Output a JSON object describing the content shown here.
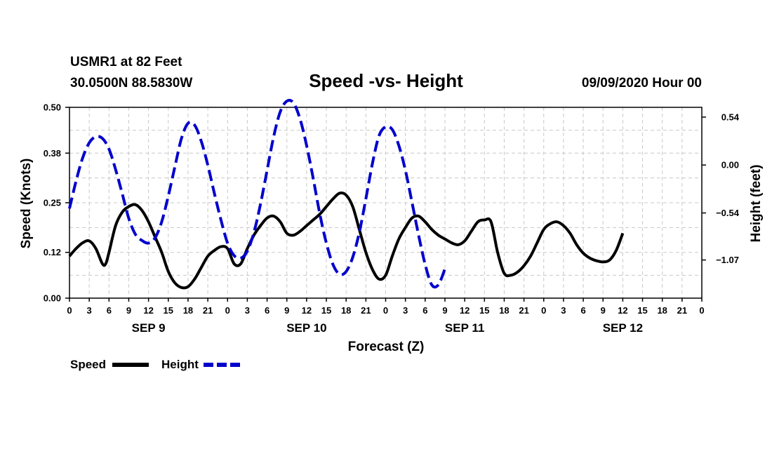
{
  "header": {
    "station": "USMR1 at 82 Feet",
    "coords": "30.0500N 88.5830W",
    "title": "Speed -vs- Height",
    "datetime": "09/09/2020 Hour 00"
  },
  "chart_data": {
    "type": "line",
    "title": "Speed -vs- Height",
    "xlabel": "Forecast (Z)",
    "ylabel_left": "Speed (Knots)",
    "ylabel_right": "Height (feet)",
    "x_range_hours": [
      0,
      96
    ],
    "ylim_left": [
      0.0,
      0.5
    ],
    "ylim_right": [
      -1.5,
      0.65
    ],
    "left_ticks": [
      "0.00",
      "0.12",
      "0.25",
      "0.38",
      "0.50"
    ],
    "right_ticks": [
      {
        "value": 0.54,
        "label": "0.54"
      },
      {
        "value": 0.0,
        "label": "0.00"
      },
      {
        "value": -0.54,
        "label": "−0.54"
      },
      {
        "value": -1.07,
        "label": "−1.07"
      }
    ],
    "x_tick_labels": [
      "0",
      "3",
      "6",
      "9",
      "12",
      "15",
      "18",
      "21",
      "0",
      "3",
      "6",
      "9",
      "12",
      "15",
      "18",
      "21",
      "0",
      "3",
      "6",
      "9",
      "12",
      "15",
      "18",
      "21",
      "0",
      "3",
      "6",
      "9",
      "12",
      "15",
      "18",
      "21",
      "0"
    ],
    "day_labels": [
      {
        "label": "SEP 9",
        "hour": 12
      },
      {
        "label": "SEP 10",
        "hour": 36
      },
      {
        "label": "SEP 11",
        "hour": 60
      },
      {
        "label": "SEP 12",
        "hour": 84
      }
    ],
    "grid": true,
    "series": [
      {
        "name": "Speed",
        "axis": "left",
        "color": "#000000",
        "style": "solid",
        "points": [
          [
            0,
            0.11
          ],
          [
            1,
            0.13
          ],
          [
            2,
            0.145
          ],
          [
            3,
            0.15
          ],
          [
            4,
            0.13
          ],
          [
            5,
            0.09
          ],
          [
            5.5,
            0.09
          ],
          [
            6,
            0.12
          ],
          [
            7,
            0.19
          ],
          [
            8,
            0.225
          ],
          [
            9,
            0.24
          ],
          [
            10,
            0.245
          ],
          [
            11,
            0.23
          ],
          [
            12,
            0.2
          ],
          [
            13,
            0.16
          ],
          [
            14,
            0.12
          ],
          [
            15,
            0.07
          ],
          [
            16,
            0.04
          ],
          [
            17,
            0.028
          ],
          [
            18,
            0.03
          ],
          [
            19,
            0.05
          ],
          [
            20,
            0.08
          ],
          [
            21,
            0.11
          ],
          [
            22,
            0.125
          ],
          [
            23,
            0.135
          ],
          [
            24,
            0.13
          ],
          [
            25,
            0.09
          ],
          [
            26,
            0.09
          ],
          [
            27,
            0.13
          ],
          [
            28,
            0.165
          ],
          [
            29,
            0.19
          ],
          [
            30,
            0.21
          ],
          [
            31,
            0.215
          ],
          [
            32,
            0.2
          ],
          [
            33,
            0.17
          ],
          [
            34,
            0.165
          ],
          [
            35,
            0.175
          ],
          [
            36,
            0.19
          ],
          [
            37,
            0.205
          ],
          [
            38,
            0.22
          ],
          [
            39,
            0.24
          ],
          [
            40,
            0.26
          ],
          [
            41,
            0.275
          ],
          [
            42,
            0.27
          ],
          [
            43,
            0.24
          ],
          [
            44,
            0.18
          ],
          [
            45,
            0.12
          ],
          [
            46,
            0.075
          ],
          [
            47,
            0.05
          ],
          [
            48,
            0.06
          ],
          [
            49,
            0.11
          ],
          [
            50,
            0.155
          ],
          [
            51,
            0.185
          ],
          [
            52,
            0.21
          ],
          [
            53,
            0.215
          ],
          [
            54,
            0.2
          ],
          [
            55,
            0.18
          ],
          [
            56,
            0.165
          ],
          [
            57,
            0.155
          ],
          [
            58,
            0.145
          ],
          [
            59,
            0.14
          ],
          [
            60,
            0.15
          ],
          [
            61,
            0.175
          ],
          [
            62,
            0.2
          ],
          [
            63,
            0.205
          ],
          [
            64,
            0.2
          ],
          [
            65,
            0.12
          ],
          [
            66,
            0.065
          ],
          [
            67,
            0.06
          ],
          [
            68,
            0.068
          ],
          [
            69,
            0.085
          ],
          [
            70,
            0.11
          ],
          [
            71,
            0.145
          ],
          [
            72,
            0.18
          ],
          [
            73,
            0.195
          ],
          [
            74,
            0.2
          ],
          [
            75,
            0.19
          ],
          [
            76,
            0.17
          ],
          [
            77,
            0.14
          ],
          [
            78,
            0.118
          ],
          [
            79,
            0.105
          ],
          [
            80,
            0.098
          ],
          [
            81,
            0.095
          ],
          [
            82,
            0.1
          ],
          [
            83,
            0.125
          ],
          [
            84,
            0.17
          ]
        ]
      },
      {
        "name": "Height",
        "axis": "right",
        "color": "#0000cc",
        "style": "dashed",
        "points": [
          [
            0,
            -0.49
          ],
          [
            1,
            -0.18
          ],
          [
            2,
            0.08
          ],
          [
            3,
            0.25
          ],
          [
            4,
            0.32
          ],
          [
            5,
            0.3
          ],
          [
            6,
            0.18
          ],
          [
            7,
            -0.05
          ],
          [
            8,
            -0.32
          ],
          [
            9,
            -0.6
          ],
          [
            10,
            -0.78
          ],
          [
            11,
            -0.85
          ],
          [
            12,
            -0.88
          ],
          [
            13,
            -0.82
          ],
          [
            14,
            -0.64
          ],
          [
            15,
            -0.35
          ],
          [
            16,
            -0.02
          ],
          [
            17,
            0.3
          ],
          [
            18,
            0.47
          ],
          [
            19,
            0.45
          ],
          [
            20,
            0.27
          ],
          [
            21,
            0
          ],
          [
            22,
            -0.32
          ],
          [
            23,
            -0.62
          ],
          [
            24,
            -0.88
          ],
          [
            25,
            -1.02
          ],
          [
            26,
            -1.05
          ],
          [
            27,
            -0.97
          ],
          [
            28,
            -0.76
          ],
          [
            29,
            -0.44
          ],
          [
            30,
            -0.06
          ],
          [
            31,
            0.32
          ],
          [
            32,
            0.6
          ],
          [
            33,
            0.72
          ],
          [
            34,
            0.7
          ],
          [
            35,
            0.52
          ],
          [
            36,
            0.22
          ],
          [
            37,
            -0.15
          ],
          [
            38,
            -0.55
          ],
          [
            39,
            -0.88
          ],
          [
            40,
            -1.12
          ],
          [
            41,
            -1.23
          ],
          [
            42,
            -1.2
          ],
          [
            43,
            -1.04
          ],
          [
            44,
            -0.76
          ],
          [
            45,
            -0.38
          ],
          [
            46,
            0.02
          ],
          [
            47,
            0.33
          ],
          [
            48,
            0.43
          ],
          [
            49,
            0.4
          ],
          [
            50,
            0.22
          ],
          [
            51,
            -0.06
          ],
          [
            52,
            -0.42
          ],
          [
            53,
            -0.79
          ],
          [
            54,
            -1.12
          ],
          [
            55,
            -1.35
          ],
          [
            56,
            -1.35
          ],
          [
            57,
            -1.17
          ]
        ]
      }
    ]
  },
  "legend": {
    "speed_label": "Speed",
    "height_label": "Height"
  }
}
